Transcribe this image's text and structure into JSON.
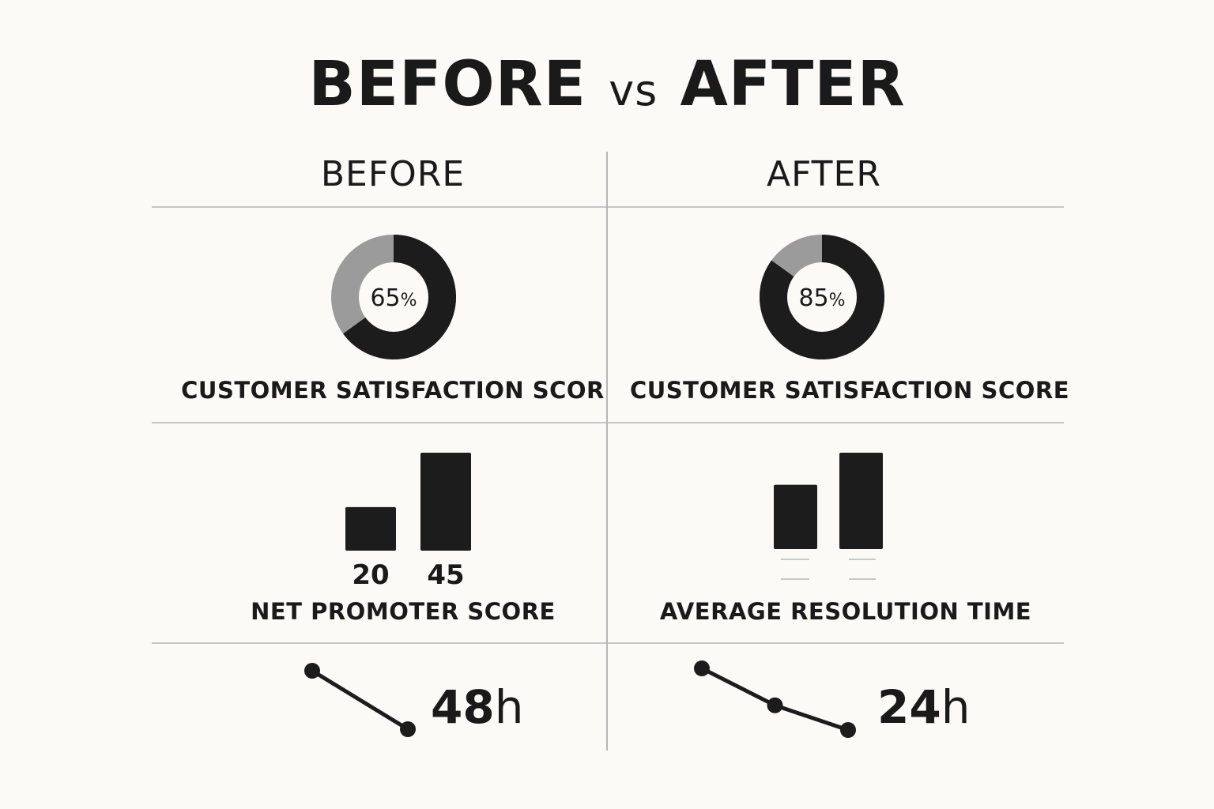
{
  "title": {
    "left": "BEFORE",
    "vs": "vs",
    "right": "AFTER"
  },
  "columns": {
    "before": "BEFORE",
    "after": "AFTER"
  },
  "colors": {
    "background": "#fbfaf6",
    "dark": "#1c1c1c",
    "gray": "#9b9b9b",
    "rule": "#b5b5b5",
    "faint": "#c8c8c8"
  },
  "chart_data": [
    {
      "type": "pie",
      "id": "donut-before",
      "label": "CUSTOMER SATISFACTION SCOR",
      "value": 65,
      "center_number": "65",
      "center_unit": "%",
      "colors": [
        "#1c1c1c",
        "#9b9b9b"
      ]
    },
    {
      "type": "pie",
      "id": "donut-after",
      "label": "CUSTOMER SATISFACTION SCORE",
      "value": 85,
      "center_number": "85",
      "center_unit": "%",
      "colors": [
        "#1c1c1c",
        "#9b9b9b"
      ]
    },
    {
      "type": "bar",
      "id": "bars-before",
      "label": "NET PROMOTER SCORE",
      "categories": [
        "20",
        "45"
      ],
      "values": [
        20,
        45
      ],
      "ylim": [
        0,
        45
      ]
    },
    {
      "type": "bar",
      "id": "bars-after",
      "label": "AVERAGE RESOLUTION TIME",
      "categories": [
        "",
        ""
      ],
      "values": [
        30,
        45
      ],
      "ylim": [
        0,
        45
      ]
    },
    {
      "type": "line",
      "id": "trend-before",
      "value": "48",
      "unit": "h",
      "points": [
        45,
        20
      ]
    },
    {
      "type": "line",
      "id": "trend-after",
      "value": "24",
      "unit": "h",
      "points": [
        45,
        30,
        20
      ]
    }
  ]
}
